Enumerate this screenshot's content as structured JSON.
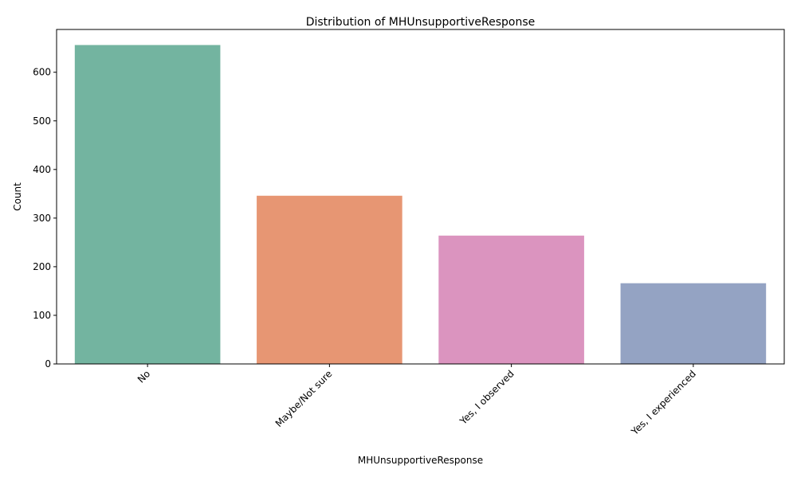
{
  "chart_data": {
    "type": "bar",
    "title": "Distribution of MHUnsupportiveResponse",
    "xlabel": "MHUnsupportiveResponse",
    "ylabel": "Count",
    "categories": [
      "No",
      "Maybe/Not sure",
      "Yes, I observed",
      "Yes, I experienced"
    ],
    "values": [
      656,
      346,
      264,
      166
    ],
    "colors": [
      "#73b4a0",
      "#e79673",
      "#db94bf",
      "#94a3c3"
    ],
    "ylim": [
      0,
      688
    ],
    "yticks": [
      0,
      100,
      200,
      300,
      400,
      500,
      600
    ],
    "xtick_rotation": -45,
    "grid": false,
    "legend": "none"
  }
}
